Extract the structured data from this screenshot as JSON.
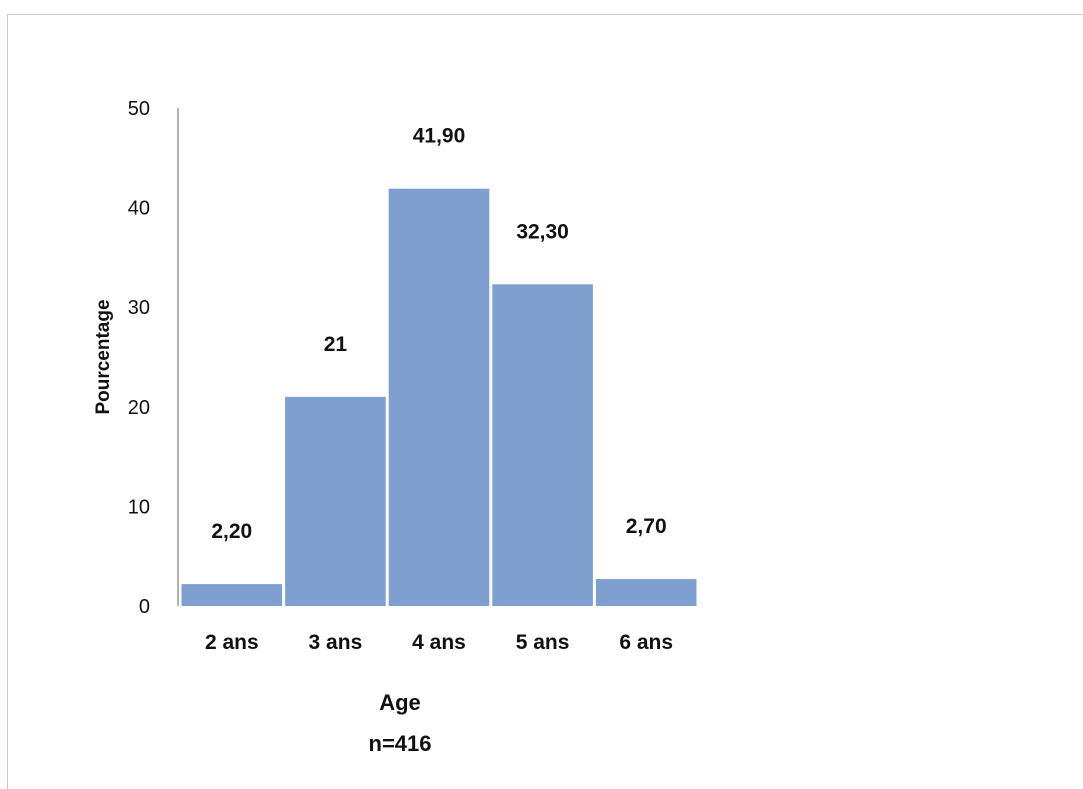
{
  "chart_data": {
    "type": "bar",
    "categories": [
      "2 ans",
      "3 ans",
      "4 ans",
      "5 ans",
      "6 ans"
    ],
    "values": [
      2.2,
      21,
      41.9,
      32.3,
      2.7
    ],
    "data_labels": [
      "2,20",
      "21",
      "41,90",
      "32,30",
      "2,70"
    ],
    "xlabel": "Age",
    "xlabel_sub": "n=416",
    "ylabel": "Pourcentage",
    "ylim": [
      0,
      50
    ],
    "yticks": [
      0,
      10,
      20,
      30,
      40,
      50
    ],
    "ytick_labels": [
      "0",
      "10",
      "20",
      "30",
      "40",
      "50"
    ],
    "bar_color": "#7f9fd0",
    "grid": false,
    "legend": "none"
  }
}
